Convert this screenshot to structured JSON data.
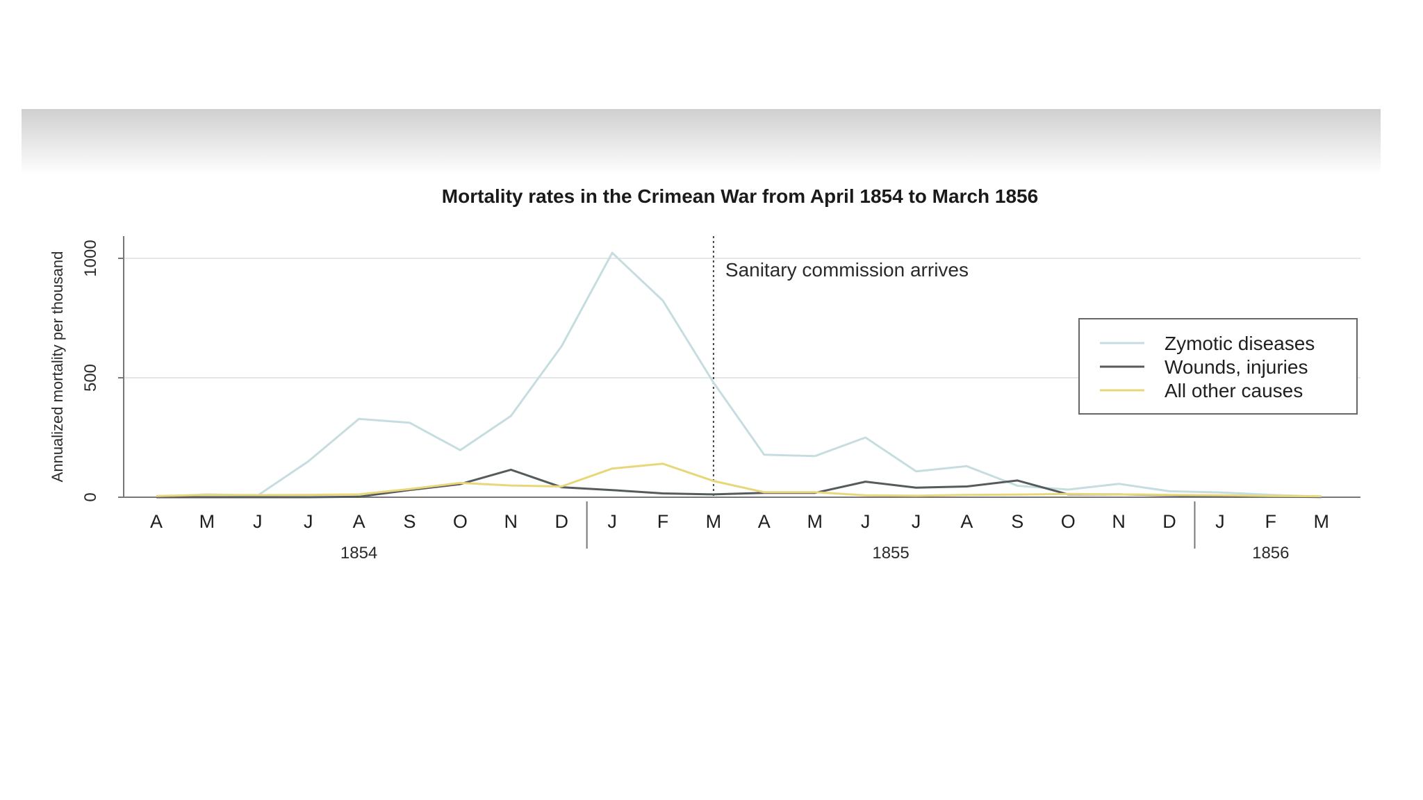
{
  "chart_data": {
    "type": "line",
    "title": "Mortality rates in the Crimean War from April 1854 to March 1856",
    "ylabel": "Annualized mortality per thousand",
    "xlabel": "",
    "ylim": [
      0,
      1000
    ],
    "yticks": [
      0,
      500,
      1000
    ],
    "grid": "horizontal",
    "legend_position": "right",
    "categories": [
      "A",
      "M",
      "J",
      "J",
      "A",
      "S",
      "O",
      "N",
      "D",
      "J",
      "F",
      "M",
      "A",
      "M",
      "J",
      "J",
      "A",
      "S",
      "O",
      "N",
      "D",
      "J",
      "F",
      "M"
    ],
    "year_groups": [
      {
        "label": "1854",
        "start": 0,
        "end": 8
      },
      {
        "label": "1855",
        "start": 9,
        "end": 20
      },
      {
        "label": "1856",
        "start": 21,
        "end": 23
      }
    ],
    "series": [
      {
        "name": "Zymotic diseases",
        "color": "#c6dde0",
        "values": [
          1,
          12,
          7,
          150,
          328,
          312,
          197,
          340,
          632,
          1023,
          823,
          480,
          178,
          172,
          250,
          108,
          130,
          48,
          32,
          56,
          25,
          20,
          10,
          2
        ]
      },
      {
        "name": "Wounds, injuries",
        "color": "#555a5c",
        "values": [
          0,
          0,
          0,
          0,
          2,
          30,
          55,
          115,
          42,
          30,
          16,
          12,
          18,
          18,
          65,
          40,
          45,
          70,
          12,
          12,
          8,
          5,
          3,
          1
        ]
      },
      {
        "name": "All other causes",
        "color": "#e8d77a",
        "values": [
          5,
          10,
          9,
          10,
          12,
          34,
          60,
          49,
          45,
          120,
          140,
          68,
          21,
          21,
          8,
          6,
          10,
          11,
          14,
          12,
          10,
          8,
          5,
          4
        ]
      }
    ],
    "annotations": [
      {
        "text": "Sanitary commission arrives",
        "at_category_index": 11
      }
    ]
  }
}
